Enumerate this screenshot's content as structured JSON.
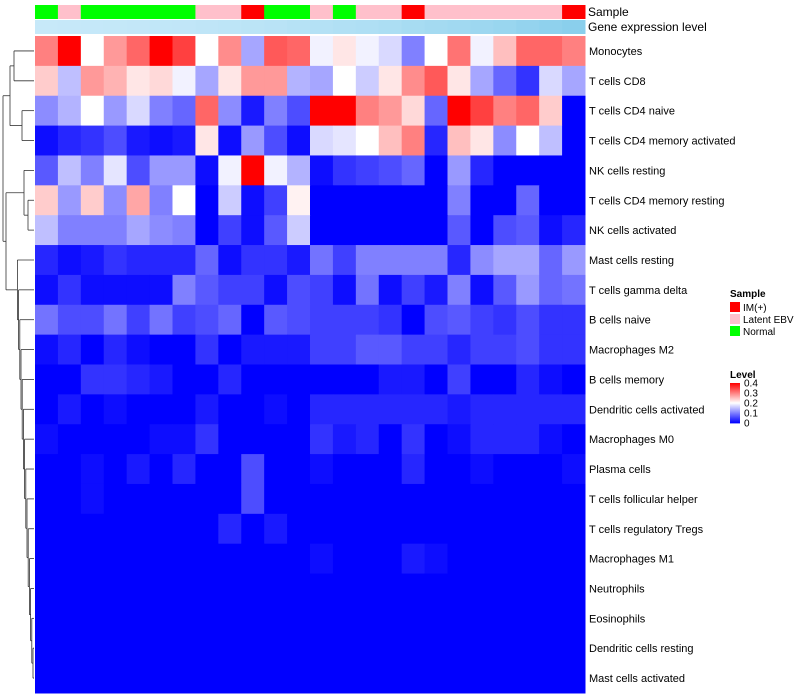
{
  "chart_data": {
    "type": "heatmap",
    "title": "",
    "colors": {
      "low": "#0000ff",
      "mid": "#ffffff",
      "high": "#ff0000",
      "IM(+)": "#ff0000",
      "Latent EBV": "#ffc0cb",
      "Normal": "#00ff00",
      "expr_low": "#c7e9f9",
      "expr_high": "#87ceeb"
    },
    "annotations": {
      "sample_label": "Sample",
      "expression_label": "Gene expression level",
      "sample": [
        "Normal",
        "Latent EBV",
        "Normal",
        "Normal",
        "Normal",
        "Normal",
        "Normal",
        "Latent EBV",
        "Latent EBV",
        "IM(+)",
        "Normal",
        "Normal",
        "Latent EBV",
        "Normal",
        "Latent EBV",
        "Latent EBV",
        "IM(+)",
        "Latent EBV",
        "Latent EBV",
        "Latent EBV",
        "Latent EBV",
        "Latent EBV",
        "Latent EBV",
        "IM(+)"
      ],
      "expression": [
        0.0,
        0.02,
        0.03,
        0.05,
        0.07,
        0.09,
        0.1,
        0.13,
        0.16,
        0.19,
        0.22,
        0.26,
        0.3,
        0.34,
        0.38,
        0.42,
        0.5,
        0.55,
        0.6,
        0.66,
        0.72,
        0.8,
        0.88,
        0.95
      ]
    },
    "rows": [
      "Monocytes",
      "T cells CD8",
      "T cells CD4 naive",
      "T cells CD4 memory activated",
      "NK cells resting",
      "T cells CD4 memory resting",
      "NK cells activated",
      "Mast cells resting",
      "T cells gamma delta",
      "B cells naive",
      "Macrophages M2",
      "B cells memory",
      "Dendritic cells activated",
      "Macrophages M0",
      "Plasma cells",
      "T cells follicular helper",
      "T cells regulatory  Tregs",
      "Macrophages M1",
      "Neutrophils",
      "Eosinophils",
      "Dendritic cells resting",
      "Mast cells activated"
    ],
    "values": [
      [
        0.3,
        0.4,
        0.2,
        0.28,
        0.32,
        0.4,
        0.35,
        0.2,
        0.29,
        0.13,
        0.33,
        0.32,
        0.19,
        0.22,
        0.19,
        0.17,
        0.1,
        0.2,
        0.31,
        0.19,
        0.25,
        0.32,
        0.32,
        0.3
      ],
      [
        0.24,
        0.15,
        0.28,
        0.26,
        0.22,
        0.23,
        0.19,
        0.13,
        0.22,
        0.28,
        0.28,
        0.14,
        0.13,
        0.2,
        0.16,
        0.22,
        0.29,
        0.33,
        0.22,
        0.13,
        0.08,
        0.04,
        0.17,
        0.13
      ],
      [
        0.11,
        0.14,
        0.2,
        0.12,
        0.17,
        0.1,
        0.08,
        0.32,
        0.11,
        0.02,
        0.1,
        0.06,
        0.4,
        0.4,
        0.3,
        0.28,
        0.23,
        0.08,
        0.4,
        0.35,
        0.3,
        0.32,
        0.24,
        0.0
      ],
      [
        0.01,
        0.03,
        0.04,
        0.06,
        0.02,
        0.01,
        0.02,
        0.22,
        0.01,
        0.12,
        0.06,
        0.01,
        0.17,
        0.18,
        0.2,
        0.25,
        0.3,
        0.03,
        0.25,
        0.22,
        0.11,
        0.2,
        0.15,
        0.0
      ],
      [
        0.07,
        0.15,
        0.1,
        0.18,
        0.06,
        0.12,
        0.12,
        0.01,
        0.19,
        0.4,
        0.19,
        0.14,
        0.01,
        0.04,
        0.05,
        0.06,
        0.08,
        0.0,
        0.12,
        0.03,
        0.0,
        0.0,
        0.0,
        0.0
      ],
      [
        0.24,
        0.12,
        0.24,
        0.11,
        0.27,
        0.1,
        0.2,
        0.0,
        0.16,
        0.01,
        0.05,
        0.21,
        0.0,
        0.0,
        0.0,
        0.0,
        0.0,
        0.0,
        0.1,
        0.0,
        0.0,
        0.08,
        0.0,
        0.0
      ],
      [
        0.15,
        0.1,
        0.1,
        0.1,
        0.13,
        0.11,
        0.1,
        0.0,
        0.05,
        0.01,
        0.07,
        0.16,
        0.0,
        0.0,
        0.0,
        0.0,
        0.0,
        0.0,
        0.07,
        0.0,
        0.06,
        0.07,
        0.01,
        0.03
      ],
      [
        0.03,
        0.01,
        0.02,
        0.04,
        0.03,
        0.03,
        0.03,
        0.08,
        0.01,
        0.04,
        0.04,
        0.02,
        0.09,
        0.05,
        0.1,
        0.1,
        0.1,
        0.1,
        0.03,
        0.11,
        0.13,
        0.13,
        0.08,
        0.12
      ],
      [
        0.01,
        0.04,
        0.01,
        0.01,
        0.01,
        0.01,
        0.1,
        0.07,
        0.05,
        0.05,
        0.01,
        0.06,
        0.05,
        0.01,
        0.09,
        0.01,
        0.05,
        0.02,
        0.1,
        0.01,
        0.07,
        0.12,
        0.08,
        0.09
      ],
      [
        0.09,
        0.06,
        0.06,
        0.09,
        0.05,
        0.09,
        0.05,
        0.06,
        0.08,
        0.0,
        0.07,
        0.06,
        0.05,
        0.05,
        0.05,
        0.04,
        0.0,
        0.06,
        0.07,
        0.05,
        0.04,
        0.06,
        0.04,
        0.04
      ],
      [
        0.01,
        0.03,
        0.0,
        0.03,
        0.01,
        0.0,
        0.0,
        0.04,
        0.0,
        0.02,
        0.02,
        0.02,
        0.05,
        0.05,
        0.07,
        0.07,
        0.05,
        0.05,
        0.03,
        0.05,
        0.05,
        0.06,
        0.04,
        0.04
      ],
      [
        0.0,
        0.0,
        0.04,
        0.04,
        0.03,
        0.02,
        0.0,
        0.0,
        0.03,
        0.0,
        0.0,
        0.0,
        0.0,
        0.0,
        0.0,
        0.02,
        0.02,
        0.0,
        0.05,
        0.0,
        0.0,
        0.03,
        0.01,
        0.0
      ],
      [
        0.0,
        0.02,
        0.0,
        0.01,
        0.0,
        0.0,
        0.0,
        0.02,
        0.0,
        0.0,
        0.01,
        0.0,
        0.03,
        0.03,
        0.03,
        0.03,
        0.03,
        0.03,
        0.02,
        0.03,
        0.03,
        0.03,
        0.03,
        0.03
      ],
      [
        0.01,
        0.0,
        0.0,
        0.0,
        0.0,
        0.01,
        0.01,
        0.04,
        0.0,
        0.0,
        0.0,
        0.0,
        0.04,
        0.02,
        0.03,
        0.0,
        0.04,
        0.0,
        0.01,
        0.03,
        0.03,
        0.03,
        0.01,
        0.0
      ],
      [
        0.0,
        0.0,
        0.01,
        0.0,
        0.02,
        0.0,
        0.03,
        0.0,
        0.0,
        0.06,
        0.0,
        0.0,
        0.01,
        0.0,
        0.0,
        0.0,
        0.03,
        0.0,
        0.0,
        0.01,
        0.0,
        0.0,
        0.0,
        0.01
      ],
      [
        0.0,
        0.0,
        0.01,
        0.0,
        0.0,
        0.0,
        0.0,
        0.0,
        0.0,
        0.06,
        0.0,
        0.0,
        0.0,
        0.0,
        0.0,
        0.0,
        0.0,
        0.0,
        0.0,
        0.0,
        0.0,
        0.0,
        0.0,
        0.0
      ],
      [
        0.0,
        0.0,
        0.0,
        0.0,
        0.0,
        0.0,
        0.0,
        0.0,
        0.03,
        0.0,
        0.02,
        0.0,
        0.0,
        0.0,
        0.0,
        0.0,
        0.0,
        0.0,
        0.0,
        0.0,
        0.0,
        0.0,
        0.0,
        0.0
      ],
      [
        0.0,
        0.0,
        0.0,
        0.0,
        0.0,
        0.0,
        0.0,
        0.0,
        0.0,
        0.0,
        0.0,
        0.0,
        0.01,
        0.0,
        0.0,
        0.0,
        0.02,
        0.01,
        0.0,
        0.0,
        0.0,
        0.0,
        0.0,
        0.0
      ],
      [
        0.0,
        0.0,
        0.0,
        0.0,
        0.0,
        0.0,
        0.0,
        0.0,
        0.0,
        0.0,
        0.0,
        0.0,
        0.0,
        0.0,
        0.0,
        0.0,
        0.0,
        0.0,
        0.0,
        0.0,
        0.0,
        0.0,
        0.0,
        0.0
      ],
      [
        0.0,
        0.0,
        0.0,
        0.0,
        0.0,
        0.0,
        0.0,
        0.0,
        0.0,
        0.0,
        0.0,
        0.0,
        0.0,
        0.0,
        0.0,
        0.0,
        0.0,
        0.0,
        0.0,
        0.0,
        0.0,
        0.0,
        0.0,
        0.0
      ],
      [
        0.0,
        0.0,
        0.0,
        0.0,
        0.0,
        0.0,
        0.0,
        0.0,
        0.0,
        0.0,
        0.0,
        0.0,
        0.0,
        0.0,
        0.0,
        0.0,
        0.0,
        0.0,
        0.0,
        0.0,
        0.0,
        0.0,
        0.0,
        0.0
      ],
      [
        0.0,
        0.0,
        0.0,
        0.0,
        0.0,
        0.0,
        0.0,
        0.0,
        0.0,
        0.0,
        0.0,
        0.0,
        0.0,
        0.0,
        0.0,
        0.0,
        0.0,
        0.0,
        0.0,
        0.0,
        0.0,
        0.0,
        0.0,
        0.0
      ]
    ],
    "value_range": [
      0,
      0.4
    ],
    "legend": {
      "sample_title": "Sample",
      "sample_items": [
        "IM(+)",
        "Latent EBV",
        "Normal"
      ],
      "level_title": "Level",
      "level_ticks": [
        "0.4",
        "0.3",
        "0.2",
        "0.1",
        "0"
      ],
      "level_tick_values": [
        0.4,
        0.3,
        0.2,
        0.1,
        0.0
      ],
      "placement": "right"
    }
  }
}
